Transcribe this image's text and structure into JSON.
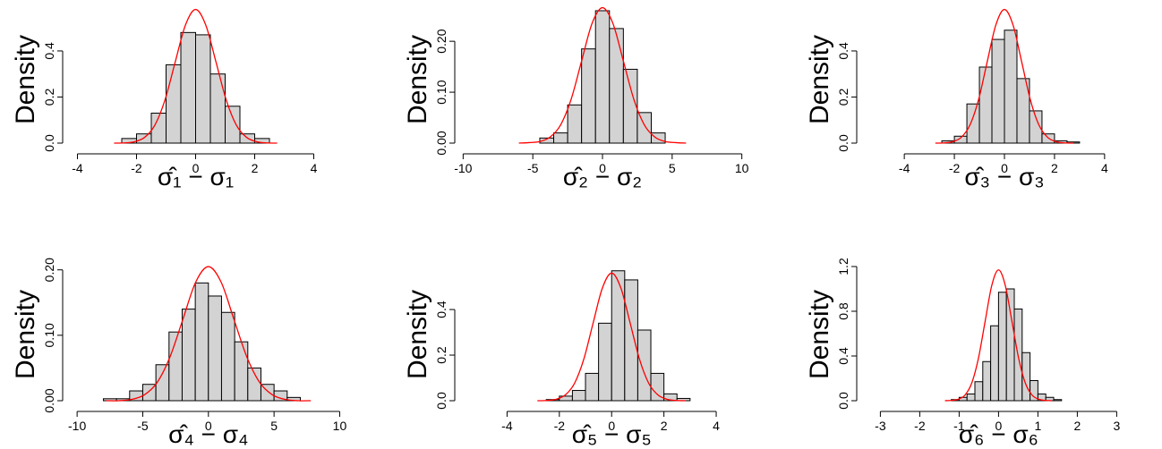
{
  "chart_data": [
    {
      "type": "histogram",
      "xlabel": "σ̂₁ − σ₁",
      "ylabel": "Density",
      "color": "#d3d3d3",
      "bins": [
        -2.5,
        -2,
        -1.5,
        -1,
        -0.5,
        0,
        0.5,
        1,
        1.5,
        2,
        2.5
      ],
      "values": [
        0.02,
        0.04,
        0.13,
        0.34,
        0.48,
        0.47,
        0.3,
        0.16,
        0.04,
        0.02
      ],
      "xlim": [
        -4.5,
        5.5
      ],
      "ylim": [
        0,
        0.59
      ],
      "xticks": [
        -4,
        -2,
        0,
        2,
        4
      ],
      "yticks": [
        {
          "value": 0,
          "label": "0.0"
        },
        {
          "value": 0.2,
          "label": "0.2"
        },
        {
          "value": 0.4,
          "label": "0.4"
        }
      ],
      "curve": {
        "color": "#ff0000",
        "x": [
          -2.76,
          -2.415,
          -2.07,
          -1.725,
          -1.38,
          -1.035,
          -0.69,
          -0.345,
          0,
          0.345,
          0.69,
          1.035,
          1.38,
          1.725,
          2.07,
          2.415,
          2.76
        ],
        "y": [
          0,
          0.001,
          0.006,
          0.025,
          0.078,
          0.188,
          0.352,
          0.512,
          0.58,
          0.512,
          0.352,
          0.188,
          0.078,
          0.025,
          0.006,
          0.001,
          0
        ]
      }
    },
    {
      "type": "histogram",
      "xlabel": "σ̂₂ − σ₂",
      "ylabel": "Density",
      "color": "#d3d3d3",
      "bins": [
        -4.5,
        -3.5,
        -2.5,
        -1.5,
        -0.5,
        0.5,
        1.5,
        2.5,
        3.5,
        4.5
      ],
      "values": [
        0.01,
        0.02,
        0.075,
        0.185,
        0.26,
        0.225,
        0.145,
        0.06,
        0.02
      ],
      "xlim": [
        -10.6,
        10.6
      ],
      "ylim": [
        0,
        0.267
      ],
      "xticks": [
        -10,
        -5,
        0,
        5,
        10
      ],
      "yticks": [
        {
          "value": 0,
          "label": "0.00"
        },
        {
          "value": 0.1,
          "label": "0.10"
        },
        {
          "value": 0.2,
          "label": "0.20"
        }
      ],
      "curve": {
        "color": "#ff0000",
        "x": [
          -6,
          -5.25,
          -4.5,
          -3.75,
          -3,
          -2.25,
          -1.5,
          -0.75,
          0,
          0.75,
          1.5,
          2.25,
          3,
          3.75,
          4.5,
          5.25,
          6
        ],
        "y": [
          0,
          0.001,
          0.003,
          0.012,
          0.036,
          0.086,
          0.161,
          0.235,
          0.266,
          0.235,
          0.161,
          0.086,
          0.036,
          0.012,
          0.003,
          0.001,
          0
        ]
      }
    },
    {
      "type": "histogram",
      "xlabel": "σ̂₃ − σ₃",
      "ylabel": "Density",
      "color": "#d3d3d3",
      "bins": [
        -2.5,
        -2,
        -1.5,
        -1,
        -0.5,
        0,
        0.5,
        1,
        1.5,
        2,
        2.5,
        3
      ],
      "values": [
        0.01,
        0.03,
        0.17,
        0.33,
        0.45,
        0.49,
        0.28,
        0.14,
        0.04,
        0.01,
        0.005
      ],
      "xlim": [
        -5.9,
        5.9
      ],
      "ylim": [
        0,
        0.59
      ],
      "xticks": [
        -4,
        -2,
        0,
        2,
        4
      ],
      "yticks": [
        {
          "value": 0,
          "label": "0.0"
        },
        {
          "value": 0.2,
          "label": "0.2"
        },
        {
          "value": 0.4,
          "label": "0.4"
        }
      ],
      "curve": {
        "color": "#ff0000",
        "x": [
          -2.76,
          -2.415,
          -2.07,
          -1.725,
          -1.38,
          -1.035,
          -0.69,
          -0.345,
          0,
          0.345,
          0.69,
          1.035,
          1.38,
          1.725,
          2.07,
          2.415,
          2.76
        ],
        "y": [
          0,
          0.001,
          0.006,
          0.025,
          0.078,
          0.188,
          0.352,
          0.512,
          0.58,
          0.512,
          0.352,
          0.188,
          0.078,
          0.025,
          0.006,
          0.001,
          0
        ]
      }
    },
    {
      "type": "histogram",
      "xlabel": "σ̂₄ − σ₄",
      "ylabel": "Density",
      "color": "#d3d3d3",
      "bins": [
        -8,
        -7,
        -6,
        -5,
        -4,
        -3,
        -2,
        -1,
        0,
        1,
        2,
        3,
        4,
        5,
        6,
        7
      ],
      "values": [
        0.003,
        0.003,
        0.015,
        0.025,
        0.055,
        0.105,
        0.14,
        0.18,
        0.16,
        0.135,
        0.09,
        0.05,
        0.025,
        0.015,
        0.005
      ],
      "xlim": [
        -11.1,
        11.4
      ],
      "ylim": [
        0,
        0.216
      ],
      "xticks": [
        -10,
        -5,
        0,
        5,
        10
      ],
      "yticks": [
        {
          "value": 0,
          "label": "0.00"
        },
        {
          "value": 0.1,
          "label": "0.10"
        },
        {
          "value": 0.2,
          "label": "0.20"
        }
      ],
      "curve": {
        "color": "#ff0000",
        "x": [
          -7.8,
          -6.825,
          -5.85,
          -4.875,
          -3.9,
          -2.925,
          -1.95,
          -0.975,
          0,
          0.975,
          1.95,
          2.925,
          3.9,
          4.875,
          5.85,
          6.825,
          7.8
        ],
        "y": [
          0,
          0,
          0.002,
          0.009,
          0.028,
          0.067,
          0.124,
          0.181,
          0.205,
          0.181,
          0.124,
          0.067,
          0.028,
          0.009,
          0.002,
          0,
          0
        ]
      }
    },
    {
      "type": "histogram",
      "xlabel": "σ̂₅ − σ₅",
      "ylabel": "Density",
      "color": "#d3d3d3",
      "bins": [
        -2.5,
        -2,
        -1.5,
        -1,
        -0.5,
        0,
        0.5,
        1,
        1.5,
        2,
        2.5,
        3
      ],
      "values": [
        0.005,
        0.02,
        0.045,
        0.12,
        0.34,
        0.57,
        0.53,
        0.31,
        0.12,
        0.03,
        0.01
      ],
      "xlim": [
        -6,
        5.3
      ],
      "ylim": [
        0,
        0.62
      ],
      "xticks": [
        -4,
        -2,
        0,
        2,
        4
      ],
      "yticks": [
        {
          "value": 0,
          "label": "0.0"
        },
        {
          "value": 0.2,
          "label": "0.2"
        },
        {
          "value": 0.4,
          "label": "0.4"
        }
      ],
      "curve": {
        "color": "#ff0000",
        "x": [
          -2.84,
          -2.485,
          -2.13,
          -1.775,
          -1.42,
          -1.065,
          -0.71,
          -0.355,
          0,
          0.355,
          0.71,
          1.065,
          1.42,
          1.775,
          2.13,
          2.485,
          2.84
        ],
        "y": [
          0,
          0.001,
          0.006,
          0.025,
          0.076,
          0.182,
          0.34,
          0.494,
          0.56,
          0.494,
          0.34,
          0.182,
          0.076,
          0.025,
          0.006,
          0.001,
          0
        ]
      }
    },
    {
      "type": "histogram",
      "xlabel": "σ̂₆ − σ₆",
      "ylabel": "Density",
      "color": "#d3d3d3",
      "bins": [
        -1.2,
        -1,
        -0.8,
        -0.6,
        -0.4,
        -0.2,
        0,
        0.2,
        0.4,
        0.6,
        0.8,
        1,
        1.2,
        1.4,
        1.6
      ],
      "values": [
        0.01,
        0.03,
        0.06,
        0.17,
        0.35,
        0.67,
        0.97,
        1.0,
        0.82,
        0.43,
        0.18,
        0.06,
        0.03,
        0.01
      ],
      "xlim": [
        -3.6,
        3.9
      ],
      "ylim": [
        0,
        1.264
      ],
      "xticks": [
        -3,
        -2,
        -1,
        0,
        1,
        2,
        3
      ],
      "yticks": [
        {
          "value": 0,
          "label": "0.0"
        },
        {
          "value": 0.4,
          "label": "0.4"
        },
        {
          "value": 0.8,
          "label": "0.8"
        },
        {
          "value": 1.2,
          "label": "1.2"
        }
      ],
      "curve": {
        "color": "#ff0000",
        "x": [
          -1.36,
          -1.19,
          -1.02,
          -0.85,
          -0.68,
          -0.51,
          -0.34,
          -0.17,
          0,
          0.17,
          0.34,
          0.51,
          0.68,
          0.85,
          1.02,
          1.19,
          1.36
        ],
        "y": [
          0,
          0.003,
          0.013,
          0.051,
          0.158,
          0.38,
          0.71,
          1.033,
          1.17,
          1.033,
          0.71,
          0.38,
          0.158,
          0.051,
          0.013,
          0.003,
          0
        ]
      }
    }
  ]
}
